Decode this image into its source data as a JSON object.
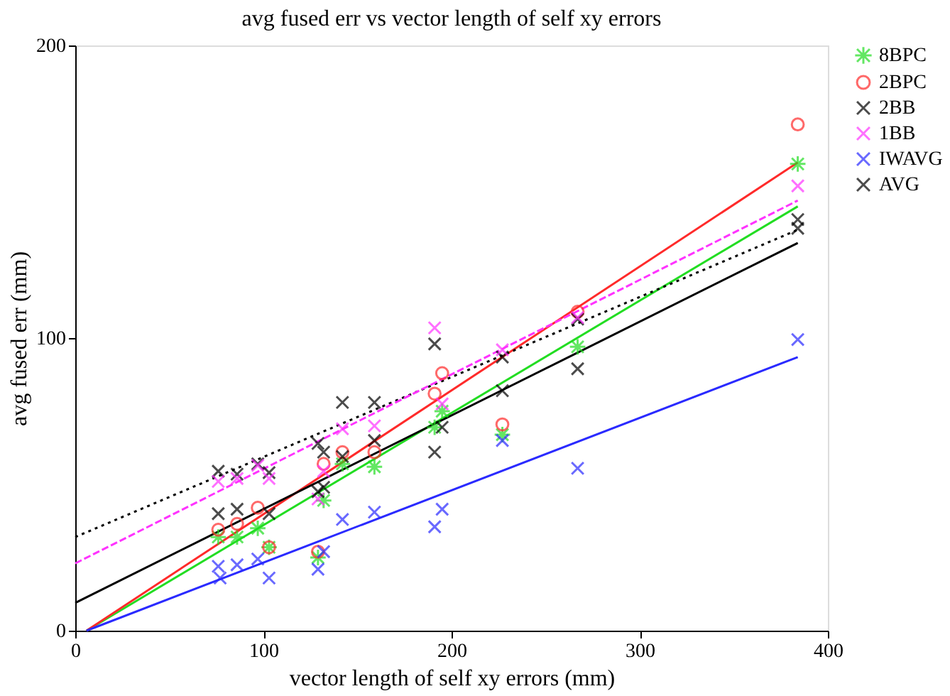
{
  "chart_data": {
    "type": "scatter",
    "title": "avg fused err vs vector length of self xy errors",
    "xlabel": "vector length of self xy errors (mm)",
    "ylabel": "avg fused err (mm)",
    "xlim": [
      0,
      400
    ],
    "ylim": [
      0,
      200
    ],
    "xticks": [
      0,
      100,
      200,
      300,
      400
    ],
    "yticks": [
      0,
      100,
      200
    ],
    "grid": false,
    "legend": "right",
    "series": [
      {
        "name": "8BPC",
        "marker": "cross",
        "color": "#22dd22",
        "x": [
          76,
          86,
          97,
          103,
          129,
          132,
          142,
          159,
          191,
          195,
          227,
          267,
          384
        ],
        "values": [
          32,
          32,
          35,
          28.5,
          25,
          44.5,
          57,
          56,
          69.5,
          75,
          67,
          97,
          159.5
        ]
      },
      {
        "name": "2BPC",
        "marker": "circle",
        "color": "#ff2a2a",
        "x": [
          76,
          86,
          97,
          103,
          129,
          132,
          142,
          159,
          191,
          195,
          227,
          267,
          384
        ],
        "values": [
          34.5,
          36.5,
          42,
          28.5,
          27,
          57,
          61,
          61,
          81,
          88,
          70.5,
          109,
          173
        ]
      },
      {
        "name": "2BB",
        "marker": "cross",
        "color": "#000000",
        "x": [
          76,
          86,
          97,
          103,
          129,
          132,
          142,
          159,
          191,
          227,
          267,
          384
        ],
        "values": [
          54.5,
          53.5,
          57,
          54,
          64,
          61,
          78,
          78,
          98,
          93.5,
          106.5,
          137.5
        ]
      },
      {
        "name": "1BB",
        "marker": "cross",
        "color": "#ff33ff",
        "x": [
          76,
          86,
          97,
          103,
          129,
          132,
          142,
          159,
          191,
          195,
          227,
          267,
          384
        ],
        "values": [
          51,
          52,
          56.5,
          52,
          45,
          54.5,
          69,
          70,
          103.5,
          77.5,
          96,
          107,
          152
        ]
      },
      {
        "name": "IWAVG",
        "marker": "cross",
        "color": "#2a2aff",
        "x": [
          76,
          77,
          86,
          97,
          103,
          129,
          132,
          142,
          159,
          191,
          195,
          227,
          267,
          384
        ],
        "values": [
          22,
          18,
          22.5,
          24.5,
          18,
          21,
          27,
          38,
          40.5,
          35.5,
          41.5,
          65,
          55.5,
          99.5
        ]
      },
      {
        "name": "AVG",
        "marker": "cross",
        "color": "#000000",
        "x": [
          76,
          86,
          103,
          129,
          132,
          142,
          159,
          191,
          195,
          227,
          267,
          384
        ],
        "values": [
          40,
          41.5,
          40,
          47.5,
          49,
          59.5,
          65,
          61,
          69.5,
          82,
          89.5,
          140.5
        ]
      },
      {
        "type": "line",
        "line_style": "solid",
        "color": "#22dd22",
        "x": [
          6,
          384
        ],
        "values": [
          0,
          145
        ]
      },
      {
        "type": "line",
        "line_style": "solid",
        "color": "#ff2a2a",
        "x": [
          6,
          384
        ],
        "values": [
          0,
          160
        ]
      },
      {
        "type": "line",
        "line_style": "dotted",
        "color": "#000000",
        "x": [
          0,
          384
        ],
        "values": [
          32,
          137
        ]
      },
      {
        "type": "line",
        "line_style": "dashed",
        "color": "#ff33ff",
        "x": [
          0,
          384
        ],
        "values": [
          23,
          147
        ]
      },
      {
        "type": "line",
        "line_style": "solid",
        "color": "#2a2aff",
        "x": [
          6,
          384
        ],
        "values": [
          0,
          93.5
        ]
      },
      {
        "type": "line",
        "line_style": "solid",
        "color": "#000000",
        "x": [
          0,
          384
        ],
        "values": [
          9.5,
          132.5
        ]
      }
    ]
  }
}
